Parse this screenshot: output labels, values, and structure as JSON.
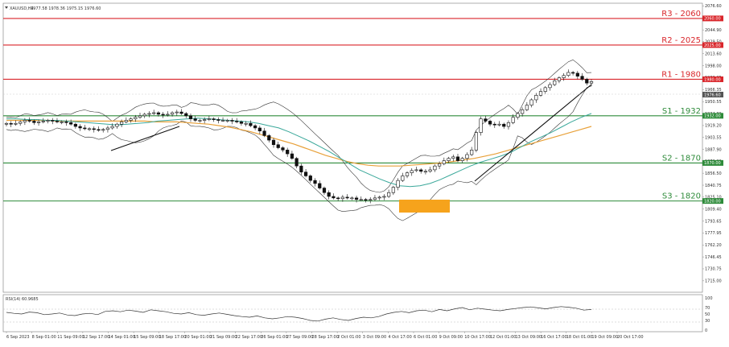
{
  "header": {
    "symbol": "XAUUSD,H4",
    "ohlc": "1977.58 1978.36 1975.15 1976.60"
  },
  "rsi_panel": {
    "label": "RSI(14) 60.9685",
    "ticks": [
      "100",
      "70",
      "50",
      "30",
      "0"
    ]
  },
  "chart_data": {
    "type": "candlestick",
    "instrument": "XAUUSD",
    "timeframe": "H4",
    "ylim": [
      1700,
      2080
    ],
    "yticks": [
      "2076.60",
      "2060.85",
      "2044.90",
      "2029.50",
      "2013.60",
      "1998.00",
      "1982.25",
      "1966.35",
      "1950.55",
      "1934.80",
      "1919.20",
      "1903.55",
      "1887.90",
      "1872.20",
      "1856.50",
      "1840.75",
      "1825.10",
      "1809.40",
      "1793.65",
      "1777.95",
      "1762.20",
      "1746.45",
      "1730.75",
      "1715.00"
    ],
    "xticks": [
      "6 Sep 2023",
      "8 Sep 01:00",
      "11 Sep 09:00",
      "12 Sep 17:00",
      "14 Sep 01:00",
      "15 Sep 09:00",
      "18 Sep 17:00",
      "20 Sep 01:00",
      "21 Sep 09:00",
      "22 Sep 17:00",
      "26 Sep 01:00",
      "27 Sep 09:00",
      "28 Sep 17:00",
      "2 Oct 01:00",
      "3 Oct 09:00",
      "4 Oct 17:00",
      "6 Oct 01:00",
      "9 Oct 09:00",
      "10 Oct 17:00",
      "12 Oct 01:00",
      "13 Oct 09:00",
      "16 Oct 17:00",
      "18 Oct 01:00",
      "19 Oct 09:00",
      "20 Oct 17:00"
    ],
    "levels": [
      {
        "label": "R3 - 2060",
        "price": 2060,
        "color": "#d9262b",
        "box": "2060.00"
      },
      {
        "label": "R2 - 2025",
        "price": 2025,
        "color": "#d9262b",
        "box": "2025.00"
      },
      {
        "label": "R1 - 1980",
        "price": 1980,
        "color": "#d9262b",
        "box": "1980.00"
      },
      {
        "label": "S1 - 1932",
        "price": 1932,
        "color": "#2e8b3a",
        "box": "1932.00"
      },
      {
        "label": "S2 - 1870",
        "price": 1870,
        "color": "#2e8b3a",
        "box": "1870.00"
      },
      {
        "label": "S3 - 1820",
        "price": 1820,
        "color": "#2e8b3a",
        "box": "1820.00"
      }
    ],
    "current_price_box": "1976.60",
    "close_series": [
      1922,
      1921,
      1922,
      1924,
      1926,
      1925,
      1923,
      1924,
      1925,
      1926,
      1925,
      1924,
      1924,
      1923,
      1921,
      1918,
      1916,
      1915,
      1915,
      1914,
      1913,
      1914,
      1916,
      1918,
      1921,
      1924,
      1926,
      1928,
      1930,
      1932,
      1934,
      1935,
      1936,
      1934,
      1933,
      1934,
      1936,
      1937,
      1935,
      1932,
      1928,
      1926,
      1926,
      1927,
      1928,
      1927,
      1926,
      1926,
      1926,
      1925,
      1924,
      1922,
      1922,
      1919,
      1916,
      1912,
      1906,
      1900,
      1894,
      1890,
      1887,
      1882,
      1876,
      1866,
      1858,
      1853,
      1847,
      1843,
      1837,
      1831,
      1826,
      1824,
      1823,
      1825,
      1824,
      1824,
      1822,
      1822,
      1821,
      1822,
      1824,
      1825,
      1826,
      1831,
      1838,
      1847,
      1853,
      1857,
      1860,
      1861,
      1859,
      1859,
      1861,
      1866,
      1869,
      1873,
      1876,
      1878,
      1873,
      1876,
      1881,
      1887,
      1910,
      1928,
      1925,
      1921,
      1920,
      1921,
      1918,
      1923,
      1930,
      1935,
      1940,
      1946,
      1953,
      1959,
      1964,
      1969,
      1973,
      1978,
      1982,
      1985,
      1989,
      1988,
      1984,
      1980,
      1975,
      1977
    ],
    "sma_fast": [
      1928,
      1928,
      1927,
      1927,
      1926,
      1926,
      1925,
      1924,
      1923,
      1922,
      1921,
      1920,
      1921,
      1922,
      1923,
      1925,
      1926,
      1927,
      1928,
      1929,
      1928,
      1927,
      1926,
      1925,
      1924,
      1922,
      1919,
      1916,
      1911,
      1905,
      1899,
      1892,
      1885,
      1877,
      1869,
      1861,
      1855,
      1849,
      1844,
      1840,
      1839,
      1840,
      1843,
      1848,
      1854,
      1860,
      1866,
      1871,
      1875,
      1879,
      1884,
      1891,
      1898,
      1904,
      1910,
      1917,
      1924,
      1930,
      1935
    ],
    "sma_slow": [
      1926,
      1926,
      1926,
      1926,
      1926,
      1925,
      1925,
      1925,
      1925,
      1925,
      1925,
      1925,
      1925,
      1925,
      1924,
      1924,
      1924,
      1923,
      1922,
      1921,
      1919,
      1917,
      1914,
      1911,
      1907,
      1903,
      1899,
      1895,
      1890,
      1885,
      1880,
      1876,
      1872,
      1869,
      1867,
      1866,
      1866,
      1866,
      1867,
      1868,
      1869,
      1870,
      1872,
      1874,
      1876,
      1879,
      1882,
      1886,
      1890,
      1894,
      1898,
      1902,
      1906,
      1910,
      1914,
      1918
    ],
    "rsi_series": [
      55,
      52,
      50,
      56,
      54,
      48,
      50,
      53,
      47,
      45,
      50,
      52,
      48,
      58,
      60,
      57,
      62,
      59,
      55,
      63,
      60,
      57,
      52,
      50,
      54,
      48,
      46,
      50,
      53,
      49,
      45,
      42,
      40,
      44,
      38,
      35,
      38,
      42,
      40,
      36,
      30,
      28,
      34,
      38,
      33,
      30,
      36,
      40,
      38,
      42,
      50,
      55,
      58,
      54,
      60,
      62,
      57,
      64,
      60,
      66,
      70,
      63,
      68,
      65,
      62,
      60,
      64,
      67,
      70,
      72,
      69,
      66,
      70,
      73,
      71,
      68,
      62,
      64
    ]
  }
}
